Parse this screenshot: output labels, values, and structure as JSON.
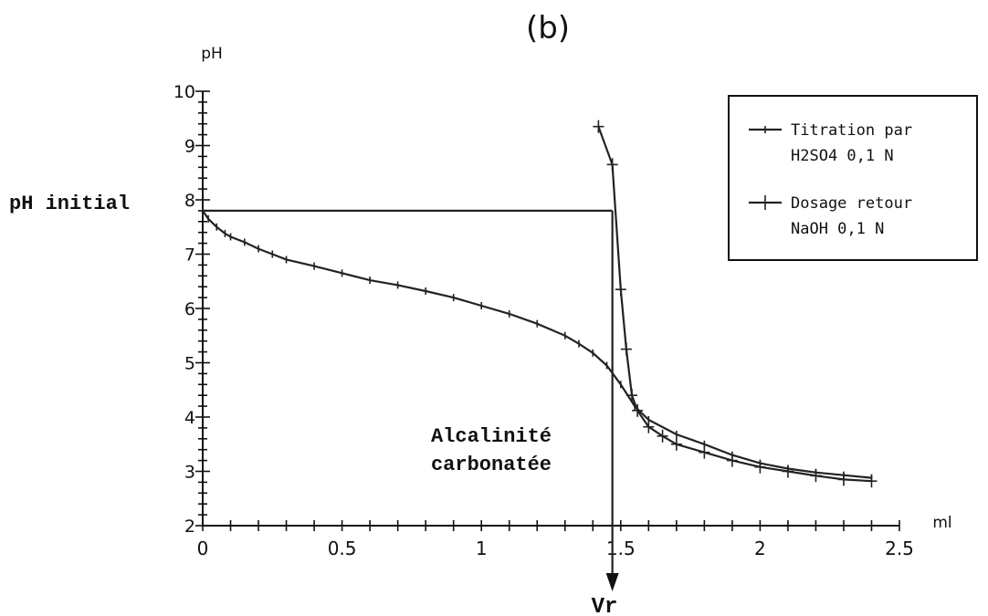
{
  "chart_data": {
    "type": "line",
    "panel_label": "(b)",
    "ylabel": "pH",
    "xlabel": "ml",
    "xlim": [
      0,
      2.5
    ],
    "ylim": [
      2,
      10
    ],
    "x_ticks": [
      "0",
      "0.5",
      "1",
      "1.5",
      "2",
      "2.5"
    ],
    "y_ticks": [
      "2",
      "3",
      "4",
      "5",
      "6",
      "7",
      "8",
      "9",
      "10"
    ],
    "grid": false,
    "legend_position": "top-right",
    "series": [
      {
        "name": "Titration par H2SO4 0,1 N",
        "name_lines": [
          "Titration par",
          "H2SO4 0,1 N"
        ],
        "marker": "tick",
        "x": [
          0,
          0.02,
          0.05,
          0.08,
          0.1,
          0.15,
          0.2,
          0.25,
          0.3,
          0.4,
          0.5,
          0.6,
          0.7,
          0.8,
          0.9,
          1.0,
          1.1,
          1.2,
          1.3,
          1.35,
          1.4,
          1.45,
          1.5,
          1.55,
          1.6,
          1.7,
          1.8,
          1.9,
          2.0,
          2.1,
          2.2,
          2.3,
          2.4
        ],
        "y": [
          7.8,
          7.65,
          7.5,
          7.38,
          7.32,
          7.22,
          7.1,
          7.0,
          6.9,
          6.78,
          6.65,
          6.52,
          6.43,
          6.32,
          6.2,
          6.05,
          5.9,
          5.72,
          5.5,
          5.35,
          5.18,
          4.95,
          4.6,
          4.2,
          3.95,
          3.68,
          3.5,
          3.3,
          3.15,
          3.05,
          2.98,
          2.93,
          2.88
        ]
      },
      {
        "name": "Dosage retour NaOH 0,1 N",
        "name_lines": [
          "Dosage retour",
          "NaOH 0,1 N"
        ],
        "marker": "plus",
        "x": [
          1.42,
          1.47,
          1.5,
          1.52,
          1.54,
          1.56,
          1.6,
          1.65,
          1.7,
          1.8,
          1.9,
          2.0,
          2.1,
          2.2,
          2.3,
          2.4
        ],
        "y": [
          9.35,
          8.65,
          6.35,
          5.25,
          4.4,
          4.12,
          3.82,
          3.65,
          3.5,
          3.35,
          3.2,
          3.08,
          3.0,
          2.92,
          2.85,
          2.82
        ]
      }
    ],
    "initial_ph": 7.8,
    "vr": 1.47,
    "annotations": {
      "ph_initial": "pH initial",
      "alcalinite_line1": "Alcalinité",
      "alcalinite_line2": "carbonatée",
      "vr": "Vr"
    }
  }
}
